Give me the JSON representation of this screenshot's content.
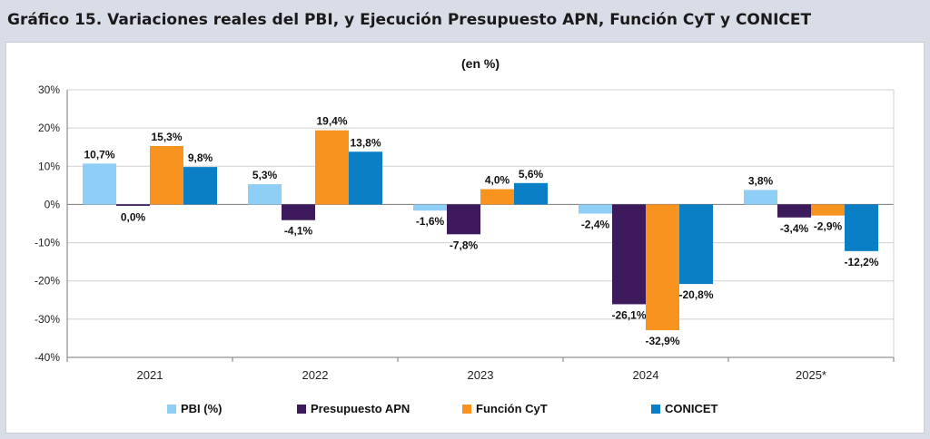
{
  "header": {
    "title": "Gráfico 15. Variaciones reales del PBI, y Ejecución Presupuesto APN, Función CyT y CONICET"
  },
  "chart_data": {
    "type": "bar",
    "subtitle": "(en %)",
    "categories": [
      "2021",
      "2022",
      "2023",
      "2024",
      "2025*"
    ],
    "series": [
      {
        "name": "PBI (%)",
        "color": "#8fcff7",
        "values": [
          10.7,
          5.3,
          -1.6,
          -2.4,
          3.8
        ],
        "labels": [
          "10,7%",
          "5,3%",
          "-1,6%",
          "-2,4%",
          "3,8%"
        ]
      },
      {
        "name": "Presupuesto APN",
        "color": "#3c1a5b",
        "values": [
          0.0,
          -4.1,
          -7.8,
          -26.1,
          -3.4
        ],
        "labels": [
          "0,0%",
          "-4,1%",
          "-7,8%",
          "-26,1%",
          "-3,4%"
        ]
      },
      {
        "name": "Función CyT",
        "color": "#f7931e",
        "values": [
          15.3,
          19.4,
          4.0,
          -32.9,
          -2.9
        ],
        "labels": [
          "15,3%",
          "19,4%",
          "4,0%",
          "-32,9%",
          "-2,9%"
        ]
      },
      {
        "name": "CONICET",
        "color": "#0a7fc5",
        "values": [
          9.8,
          13.8,
          5.6,
          -20.8,
          -12.2
        ],
        "labels": [
          "9,8%",
          "13,8%",
          "5,6%",
          "-20,8%",
          "-12,2%"
        ]
      }
    ],
    "ylim": [
      -40,
      30
    ],
    "yticks": [
      30,
      20,
      10,
      0,
      -10,
      -20,
      -30,
      -40
    ],
    "ytick_labels": [
      "30%",
      "20%",
      "10%",
      "0%",
      "-10%",
      "-20%",
      "-30%",
      "-40%"
    ],
    "grid": true,
    "legend_position": "bottom"
  }
}
